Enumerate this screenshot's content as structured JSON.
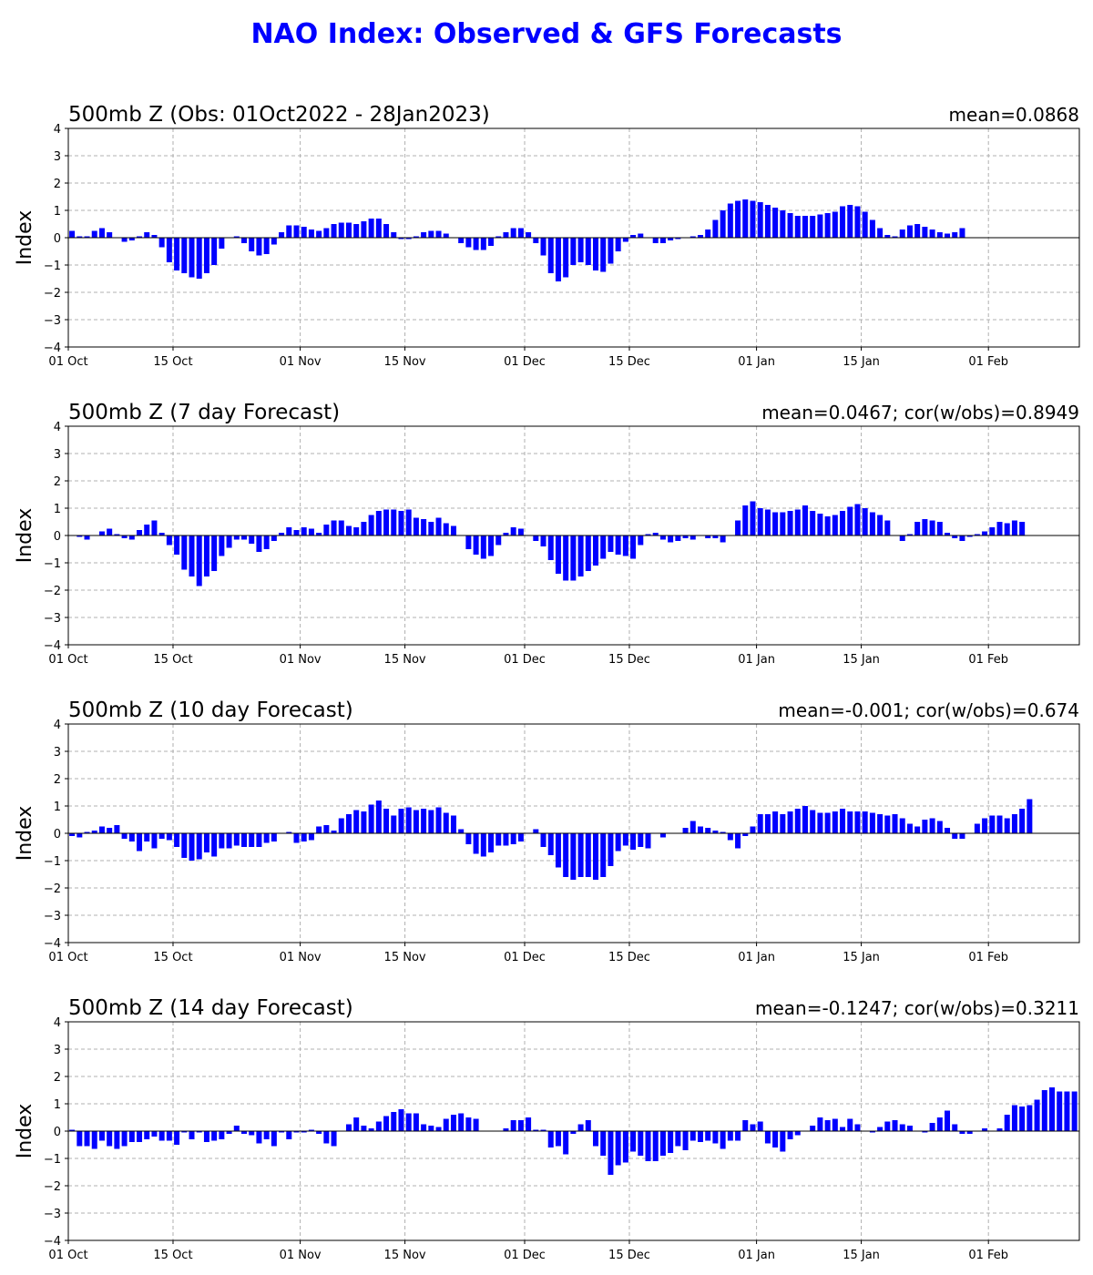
{
  "title": "NAO Index: Observed & GFS Forecasts",
  "colors": {
    "title": "#0000ff",
    "bars": "#0000ff",
    "grid": "#b0b0b0",
    "zero_line": "#000000"
  },
  "chart_data": [
    {
      "type": "bar",
      "title": "500mb Z (Obs: 01Oct2022 - 28Jan2023)",
      "stat": "mean=0.0868",
      "ylabel": "Index",
      "ylim": [
        -4,
        4
      ],
      "yticks": [
        "4",
        "3",
        "2",
        "1",
        "0",
        "−1",
        "−2",
        "−3",
        "−4"
      ],
      "xticks": [
        "01 Oct",
        "15 Oct",
        "01 Nov",
        "15 Nov",
        "01 Dec",
        "15 Dec",
        "01 Jan",
        "15 Jan",
        "01 Feb"
      ],
      "grid": true,
      "start_date": "2022-10-01",
      "values": [
        0.25,
        0.05,
        0.05,
        0.25,
        0.35,
        0.2,
        0.0,
        -0.15,
        -0.1,
        0.05,
        0.2,
        0.1,
        -0.35,
        -0.9,
        -1.2,
        -1.3,
        -1.45,
        -1.5,
        -1.3,
        -1.0,
        -0.4,
        0.0,
        0.05,
        -0.2,
        -0.5,
        -0.65,
        -0.6,
        -0.25,
        0.2,
        0.45,
        0.45,
        0.4,
        0.3,
        0.25,
        0.35,
        0.5,
        0.55,
        0.55,
        0.5,
        0.6,
        0.7,
        0.7,
        0.5,
        0.2,
        -0.05,
        -0.05,
        0.05,
        0.2,
        0.25,
        0.25,
        0.15,
        0.0,
        -0.2,
        -0.35,
        -0.45,
        -0.45,
        -0.3,
        0.05,
        0.2,
        0.35,
        0.35,
        0.2,
        -0.2,
        -0.65,
        -1.3,
        -1.6,
        -1.45,
        -1.0,
        -0.9,
        -1.0,
        -1.2,
        -1.25,
        -0.95,
        -0.5,
        -0.15,
        0.1,
        0.15,
        0.0,
        -0.2,
        -0.2,
        -0.1,
        -0.05,
        0.0,
        0.05,
        0.1,
        0.3,
        0.65,
        1.0,
        1.25,
        1.35,
        1.4,
        1.35,
        1.3,
        1.2,
        1.1,
        1.0,
        0.9,
        0.8,
        0.8,
        0.8,
        0.85,
        0.9,
        0.95,
        1.15,
        1.2,
        1.15,
        0.95,
        0.65,
        0.35,
        0.1,
        0.05,
        0.3,
        0.45,
        0.5,
        0.4,
        0.3,
        0.2,
        0.15,
        0.2,
        0.35
      ]
    },
    {
      "type": "bar",
      "title": "500mb Z (7 day Forecast)",
      "stat": "mean=0.0467; cor(w/obs)=0.8949",
      "ylabel": "Index",
      "ylim": [
        -4,
        4
      ],
      "yticks": [
        "4",
        "3",
        "2",
        "1",
        "0",
        "−1",
        "−2",
        "−3",
        "−4"
      ],
      "xticks": [
        "01 Oct",
        "15 Oct",
        "01 Nov",
        "15 Nov",
        "01 Dec",
        "15 Dec",
        "01 Jan",
        "15 Jan",
        "01 Feb"
      ],
      "grid": true,
      "start_date": "2022-10-01",
      "values": [
        0.0,
        -0.05,
        -0.15,
        0.0,
        0.15,
        0.25,
        0.05,
        -0.1,
        -0.15,
        0.2,
        0.4,
        0.55,
        0.1,
        -0.35,
        -0.7,
        -1.25,
        -1.5,
        -1.85,
        -1.5,
        -1.3,
        -0.75,
        -0.45,
        -0.15,
        -0.15,
        -0.3,
        -0.6,
        -0.5,
        -0.2,
        0.1,
        0.3,
        0.2,
        0.3,
        0.25,
        0.1,
        0.4,
        0.55,
        0.55,
        0.35,
        0.3,
        0.5,
        0.75,
        0.9,
        0.95,
        0.95,
        0.9,
        0.95,
        0.65,
        0.6,
        0.5,
        0.65,
        0.45,
        0.35,
        0.0,
        -0.5,
        -0.7,
        -0.85,
        -0.75,
        -0.35,
        0.1,
        0.3,
        0.25,
        0.0,
        -0.2,
        -0.4,
        -0.9,
        -1.4,
        -1.65,
        -1.65,
        -1.5,
        -1.3,
        -1.1,
        -0.85,
        -0.6,
        -0.7,
        -0.75,
        -0.85,
        -0.35,
        0.05,
        0.1,
        -0.15,
        -0.25,
        -0.2,
        -0.1,
        -0.15,
        0.0,
        -0.1,
        -0.1,
        -0.25,
        0.0,
        0.55,
        1.1,
        1.25,
        1.0,
        0.95,
        0.85,
        0.85,
        0.9,
        0.95,
        1.1,
        0.9,
        0.8,
        0.7,
        0.75,
        0.9,
        1.05,
        1.15,
        1.0,
        0.85,
        0.75,
        0.55,
        0.0,
        -0.2,
        0.05,
        0.5,
        0.6,
        0.55,
        0.5,
        0.1,
        -0.1,
        -0.2,
        -0.05,
        0.05,
        0.15,
        0.3,
        0.5,
        0.45,
        0.55,
        0.5
      ]
    },
    {
      "type": "bar",
      "title": "500mb Z (10 day Forecast)",
      "stat": "mean=-0.001; cor(w/obs)=0.674",
      "ylabel": "Index",
      "ylim": [
        -4,
        4
      ],
      "yticks": [
        "4",
        "3",
        "2",
        "1",
        "0",
        "−1",
        "−2",
        "−3",
        "−4"
      ],
      "xticks": [
        "01 Oct",
        "15 Oct",
        "01 Nov",
        "15 Nov",
        "01 Dec",
        "15 Dec",
        "01 Jan",
        "15 Jan",
        "01 Feb"
      ],
      "grid": true,
      "start_date": "2022-10-01",
      "values": [
        -0.1,
        -0.15,
        0.05,
        0.1,
        0.25,
        0.2,
        0.3,
        -0.2,
        -0.3,
        -0.65,
        -0.3,
        -0.55,
        -0.2,
        -0.25,
        -0.5,
        -0.9,
        -1.0,
        -0.95,
        -0.7,
        -0.85,
        -0.55,
        -0.55,
        -0.45,
        -0.5,
        -0.5,
        -0.5,
        -0.35,
        -0.3,
        0.0,
        0.05,
        -0.35,
        -0.3,
        -0.25,
        0.25,
        0.3,
        0.1,
        0.55,
        0.7,
        0.85,
        0.8,
        1.05,
        1.2,
        0.9,
        0.65,
        0.9,
        0.95,
        0.85,
        0.9,
        0.85,
        0.95,
        0.75,
        0.65,
        0.15,
        -0.4,
        -0.75,
        -0.85,
        -0.7,
        -0.45,
        -0.45,
        -0.4,
        -0.3,
        0.0,
        0.15,
        -0.5,
        -0.8,
        -1.25,
        -1.6,
        -1.7,
        -1.6,
        -1.6,
        -1.7,
        -1.6,
        -1.2,
        -0.65,
        -0.45,
        -0.6,
        -0.5,
        -0.55,
        0.0,
        -0.15,
        0.0,
        0.0,
        0.2,
        0.45,
        0.25,
        0.2,
        0.1,
        0.05,
        -0.25,
        -0.55,
        -0.1,
        0.25,
        0.7,
        0.7,
        0.8,
        0.7,
        0.8,
        0.9,
        1.0,
        0.85,
        0.75,
        0.75,
        0.8,
        0.9,
        0.8,
        0.8,
        0.8,
        0.75,
        0.7,
        0.65,
        0.7,
        0.55,
        0.35,
        0.25,
        0.5,
        0.55,
        0.45,
        0.2,
        -0.2,
        -0.2,
        0.0,
        0.35,
        0.55,
        0.65,
        0.65,
        0.55,
        0.7,
        0.9,
        1.25
      ]
    },
    {
      "type": "bar",
      "title": "500mb Z (14 day Forecast)",
      "stat": "mean=-0.1247; cor(w/obs)=0.3211",
      "ylabel": "Index",
      "ylim": [
        -4,
        4
      ],
      "yticks": [
        "4",
        "3",
        "2",
        "1",
        "0",
        "−1",
        "−2",
        "−3",
        "−4"
      ],
      "xticks": [
        "01 Oct",
        "15 Oct",
        "01 Nov",
        "15 Nov",
        "01 Dec",
        "15 Dec",
        "01 Jan",
        "15 Jan",
        "01 Feb"
      ],
      "grid": true,
      "start_date": "2022-10-01",
      "values": [
        0.05,
        -0.55,
        -0.55,
        -0.65,
        -0.35,
        -0.55,
        -0.65,
        -0.55,
        -0.4,
        -0.4,
        -0.3,
        -0.2,
        -0.35,
        -0.35,
        -0.5,
        -0.05,
        -0.3,
        -0.05,
        -0.4,
        -0.35,
        -0.3,
        -0.1,
        0.2,
        -0.1,
        -0.15,
        -0.45,
        -0.3,
        -0.55,
        -0.05,
        -0.3,
        -0.05,
        -0.05,
        0.05,
        -0.1,
        -0.45,
        -0.55,
        0.0,
        0.25,
        0.5,
        0.2,
        0.1,
        0.35,
        0.55,
        0.7,
        0.8,
        0.65,
        0.65,
        0.25,
        0.2,
        0.15,
        0.45,
        0.6,
        0.65,
        0.5,
        0.45,
        0.0,
        0.0,
        0.0,
        0.1,
        0.4,
        0.4,
        0.5,
        0.05,
        0.05,
        -0.6,
        -0.55,
        -0.85,
        -0.1,
        0.25,
        0.4,
        -0.55,
        -0.9,
        -1.6,
        -1.25,
        -1.15,
        -0.75,
        -0.9,
        -1.1,
        -1.1,
        -0.9,
        -0.8,
        -0.55,
        -0.7,
        -0.35,
        -0.4,
        -0.35,
        -0.45,
        -0.65,
        -0.35,
        -0.35,
        0.4,
        0.25,
        0.35,
        -0.45,
        -0.6,
        -0.75,
        -0.3,
        -0.15,
        0.0,
        0.2,
        0.5,
        0.4,
        0.45,
        0.15,
        0.45,
        0.25,
        0.0,
        -0.05,
        0.15,
        0.35,
        0.4,
        0.25,
        0.2,
        0.0,
        -0.05,
        0.3,
        0.5,
        0.75,
        0.25,
        -0.1,
        -0.1,
        0.0,
        0.1,
        0.0,
        0.1,
        0.6,
        0.95,
        0.9,
        0.95,
        1.15,
        1.5,
        1.6,
        1.45,
        1.45,
        1.45
      ]
    }
  ]
}
